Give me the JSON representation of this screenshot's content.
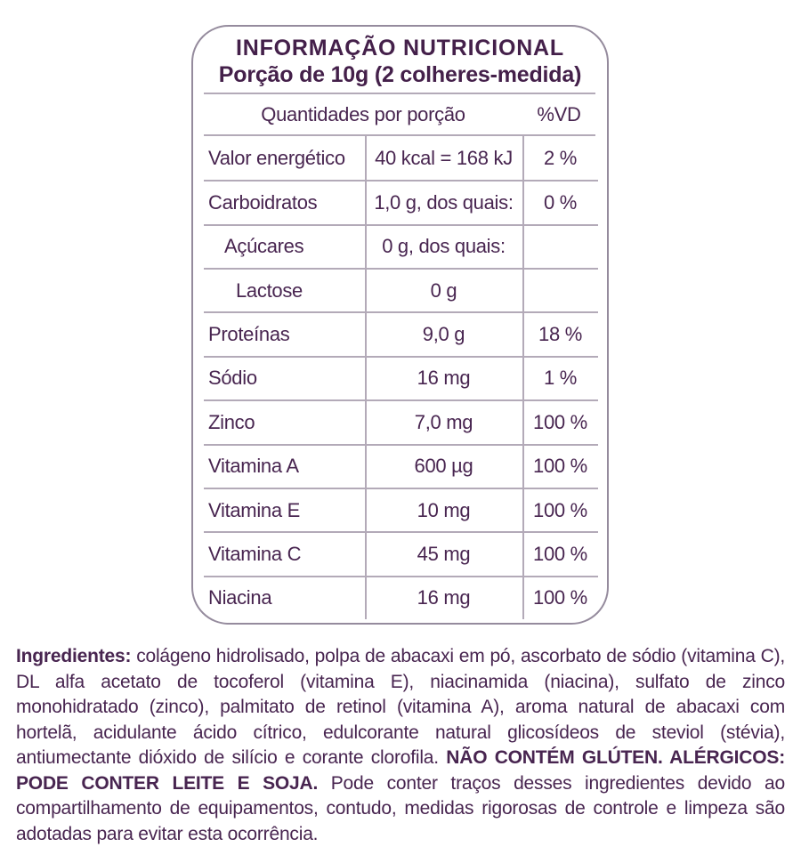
{
  "colors": {
    "text": "#482550",
    "title": "#44204a",
    "rule": "#b3aab8",
    "border": "#958b9d",
    "background": "#ffffff"
  },
  "header": {
    "title": "INFORMAÇÃO NUTRICIONAL",
    "subtitle": "Porção de 10g (2 colheres-medida)"
  },
  "table": {
    "quantities_header": "Quantidades por porção",
    "vd_header": "%VD",
    "rows": [
      {
        "label": "Valor energético",
        "quantity": "40 kcal = 168 kJ",
        "vd": "2 %"
      },
      {
        "label": "Carboidratos",
        "quantity": "1,0 g, dos quais:",
        "vd": "0 %"
      },
      {
        "label": "Açúcares",
        "quantity": "0 g, dos quais:",
        "vd": ""
      },
      {
        "label": "Lactose",
        "quantity": "0 g",
        "vd": ""
      },
      {
        "label": "Proteínas",
        "quantity": "9,0 g",
        "vd": "18 %"
      },
      {
        "label": "Sódio",
        "quantity": "16 mg",
        "vd": "1 %"
      },
      {
        "label": "Zinco",
        "quantity": "7,0 mg",
        "vd": "100 %"
      },
      {
        "label": "Vitamina A",
        "quantity": "600 µg",
        "vd": "100 %"
      },
      {
        "label": "Vitamina E",
        "quantity": "10 mg",
        "vd": "100 %"
      },
      {
        "label": "Vitamina C",
        "quantity": "45 mg",
        "vd": "100 %"
      },
      {
        "label": "Niacina",
        "quantity": "16 mg",
        "vd": "100 %"
      }
    ]
  },
  "ingredients": {
    "segments": [
      {
        "text": "Ingredientes: ",
        "bold": true
      },
      {
        "text": "colágeno hidrolisado, polpa de abacaxi em pó, ascorbato de sódio (vitamina C), DL alfa acetato de tocoferol (vitamina E), niacinamida (niacina), sulfato de zinco monohidratado (zinco), palmitato de retinol (vitamina A), aroma natural de abacaxi com hortelã, acidulante ácido cítrico, edulcorante natural glicosídeos de steviol (stévia), antiumectante dióxido de silício e corante clorofila. ",
        "bold": false
      },
      {
        "text": "NÃO CONTÉM GLÚTEN. ALÉRGICOS: PODE CONTER LEITE E SOJA. ",
        "bold": true
      },
      {
        "text": "Pode conter traços desses ingredientes devido ao compartilhamento de equipamentos, contudo, medidas rigorosas de controle e limpeza são adotadas para evitar esta ocorrência.",
        "bold": false
      }
    ]
  }
}
